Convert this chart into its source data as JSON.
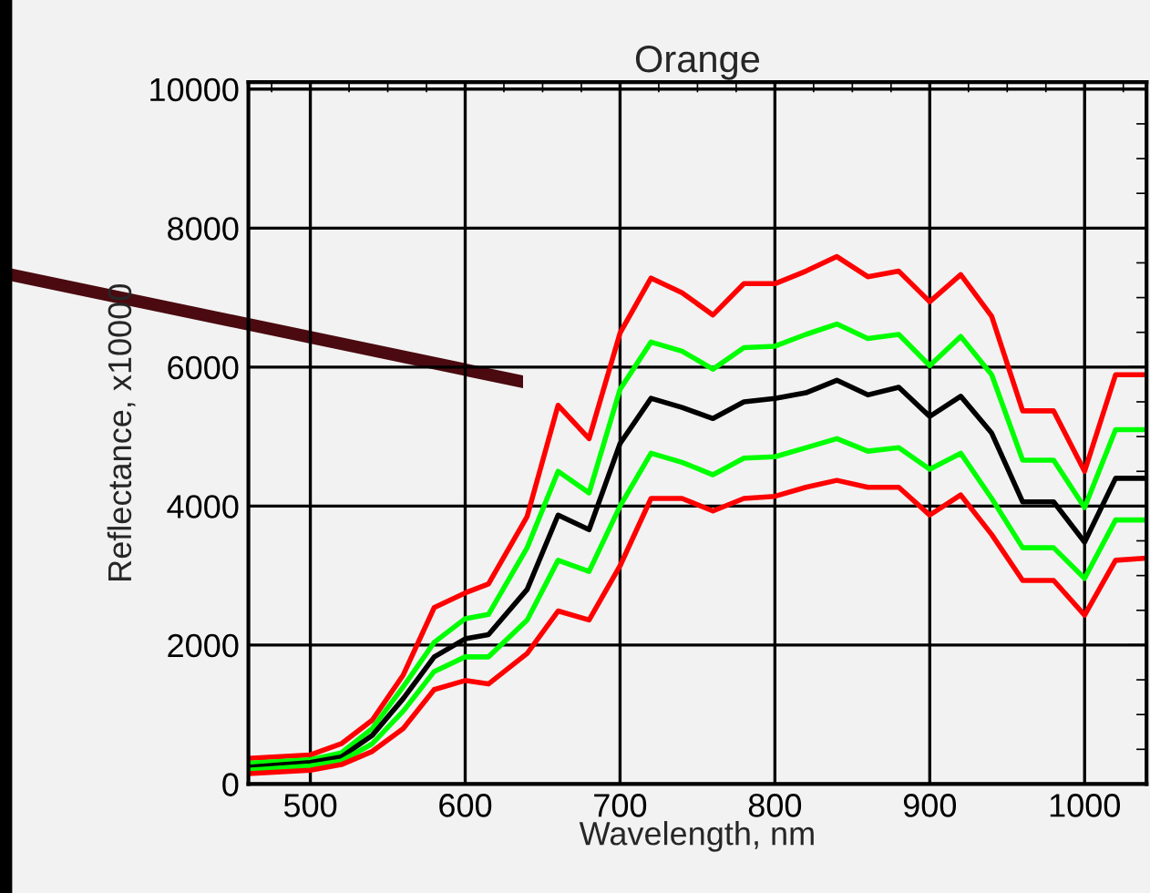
{
  "chart_data": {
    "type": "line",
    "title": "Orange",
    "xlabel": "Wavelength, nm",
    "ylabel": "Reflectance, x10000",
    "x": [
      460,
      500,
      520,
      540,
      560,
      580,
      600,
      615,
      640,
      660,
      680,
      700,
      720,
      740,
      760,
      780,
      800,
      820,
      840,
      860,
      880,
      900,
      920,
      940,
      960,
      980,
      1000,
      1020,
      1040
    ],
    "series": [
      {
        "color": "#ff0000",
        "values": [
          370,
          420,
          580,
          920,
          1570,
          2540,
          2750,
          2880,
          3850,
          5450,
          4970,
          6490,
          7280,
          7070,
          6750,
          7200,
          7200,
          7380,
          7590,
          7300,
          7380,
          6940,
          7330,
          6730,
          5370,
          5370,
          4500,
          5890,
          5890
        ]
      },
      {
        "color": "#00ff00",
        "values": [
          300,
          350,
          450,
          800,
          1400,
          2040,
          2380,
          2440,
          3400,
          4500,
          4190,
          5680,
          6360,
          6230,
          5970,
          6280,
          6300,
          6470,
          6620,
          6410,
          6470,
          6020,
          6440,
          5890,
          4660,
          4660,
          3980,
          5100,
          5100
        ]
      },
      {
        "color": "#000000",
        "values": [
          240,
          310,
          390,
          700,
          1230,
          1830,
          2090,
          2150,
          2800,
          3870,
          3660,
          4900,
          5550,
          5420,
          5260,
          5500,
          5550,
          5630,
          5810,
          5600,
          5710,
          5290,
          5580,
          5050,
          4060,
          4060,
          3480,
          4400,
          4400
        ]
      },
      {
        "color": "#00ff00",
        "values": [
          200,
          260,
          330,
          580,
          1050,
          1620,
          1830,
          1830,
          2360,
          3220,
          3060,
          4000,
          4760,
          4630,
          4450,
          4690,
          4710,
          4840,
          4970,
          4790,
          4840,
          4530,
          4760,
          4110,
          3400,
          3400,
          2960,
          3800,
          3800
        ]
      },
      {
        "color": "#ff0000",
        "values": [
          150,
          200,
          280,
          470,
          800,
          1360,
          1490,
          1440,
          1880,
          2490,
          2360,
          3140,
          4110,
          4110,
          3930,
          4110,
          4140,
          4270,
          4370,
          4270,
          4270,
          3870,
          4160,
          3590,
          2930,
          2930,
          2430,
          3220,
          3250
        ]
      }
    ],
    "xlim": [
      460,
      1040
    ],
    "ylim": [
      0,
      10100
    ],
    "xticks": [
      500,
      600,
      700,
      800,
      900,
      1000
    ],
    "yticks": [
      0,
      2000,
      4000,
      6000,
      8000,
      10000
    ],
    "grid": true,
    "marker": "none",
    "line_style": "solid"
  }
}
